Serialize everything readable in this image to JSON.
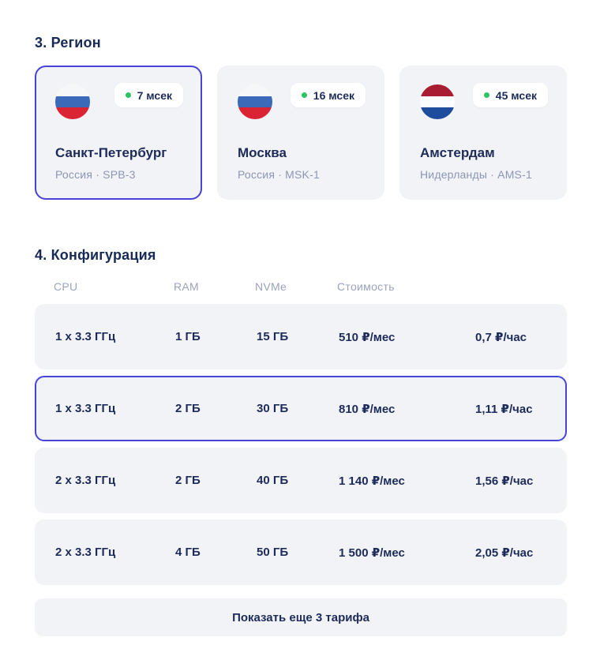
{
  "colors": {
    "accent_border": "#4744d8",
    "navy_text": "#1d2b5b",
    "muted_text": "#8c96b4",
    "header_text": "#9aa3b9",
    "card_bg": "#f2f3f6",
    "latency_green": "#2bc463",
    "flag_russia": [
      "#ffffff",
      "#3a6ab8",
      "#da2333"
    ],
    "flag_netherlands": [
      "#a91d33",
      "#ffffff",
      "#1f4d9e"
    ]
  },
  "region_section": {
    "title": "3. Регион",
    "cards": [
      {
        "city": "Санкт-Петербург",
        "location": "Россия · SPB-3",
        "latency": "7 мсек",
        "flag": "russia-flag",
        "selected": true
      },
      {
        "city": "Москва",
        "location": "Россия · MSK-1",
        "latency": "16 мсек",
        "flag": "russia-flag",
        "selected": false
      },
      {
        "city": "Амстердам",
        "location": "Нидерланды · AMS-1",
        "latency": "45 мсек",
        "flag": "netherlands-flag",
        "selected": false
      }
    ]
  },
  "config_section": {
    "title": "4. Конфигурация",
    "columns": [
      "CPU",
      "RAM",
      "NVMe",
      "Стоимость"
    ],
    "rows": [
      {
        "cpu": "1 x 3.3 ГГц",
        "ram": "1 ГБ",
        "nvme": "15 ГБ",
        "monthly": "510 ₽/мес",
        "hourly": "0,7 ₽/час",
        "selected": false
      },
      {
        "cpu": "1 x 3.3 ГГц",
        "ram": "2 ГБ",
        "nvme": "30 ГБ",
        "monthly": "810 ₽/мес",
        "hourly": "1,11 ₽/час",
        "selected": true
      },
      {
        "cpu": "2 x 3.3 ГГц",
        "ram": "2 ГБ",
        "nvme": "40 ГБ",
        "monthly": "1 140 ₽/мес",
        "hourly": "1,56 ₽/час",
        "selected": false
      },
      {
        "cpu": "2 x 3.3 ГГц",
        "ram": "4 ГБ",
        "nvme": "50 ГБ",
        "monthly": "1 500 ₽/мес",
        "hourly": "2,05 ₽/час",
        "selected": false
      }
    ],
    "show_more_label": "Показать еще 3 тарифа"
  }
}
